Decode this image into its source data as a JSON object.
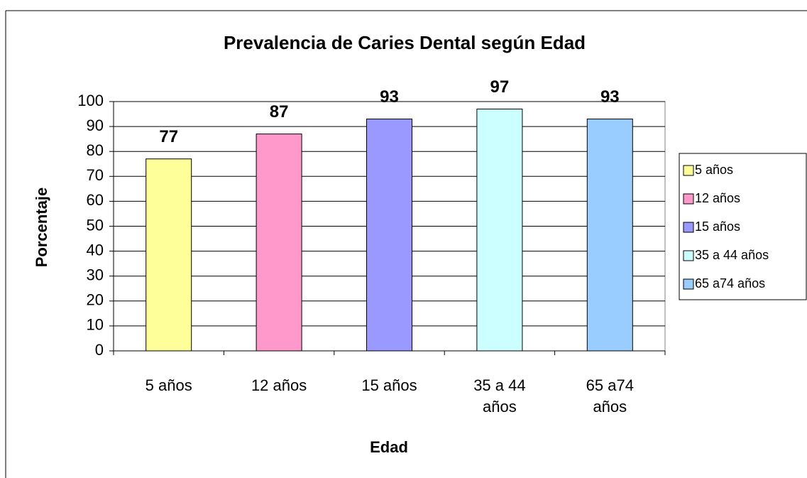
{
  "chart_data": {
    "type": "bar",
    "title": "Prevalencia de Caries Dental según Edad",
    "x_label": "Edad",
    "y_label": "Porcentaje",
    "categories": [
      "5 años",
      "12 años",
      "15 años",
      "35 a 44 años",
      "65 a74 años"
    ],
    "values": [
      77,
      87,
      93,
      97,
      93
    ],
    "colors": [
      "#ffff99",
      "#ff99cc",
      "#9999ff",
      "#ccffff",
      "#99ccff"
    ],
    "ylim": [
      0,
      100
    ],
    "yticks": [
      0,
      10,
      20,
      30,
      40,
      50,
      60,
      70,
      80,
      90,
      100
    ],
    "grid": true,
    "legend": "right"
  }
}
